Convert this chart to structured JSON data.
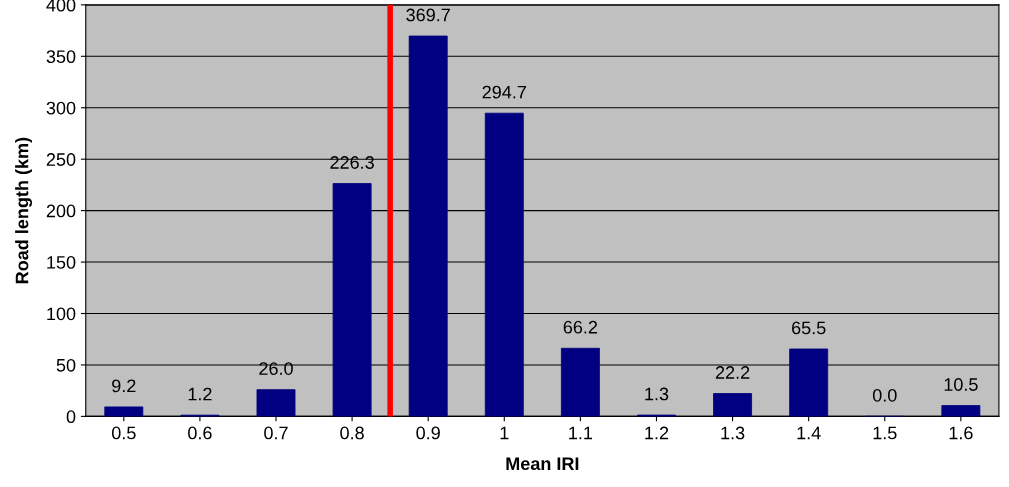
{
  "chart_data": {
    "type": "bar",
    "xlabel": "Mean IRI",
    "ylabel": "Road length (km)",
    "x": [
      0.5,
      0.6,
      0.7,
      0.8,
      0.9,
      1,
      1.1,
      1.2,
      1.3,
      1.4,
      1.5,
      1.6
    ],
    "values": [
      9.2,
      1.2,
      26.0,
      226.3,
      369.7,
      294.7,
      66.2,
      1.3,
      22.2,
      65.5,
      0.0,
      10.5
    ],
    "value_labels": [
      "9.2",
      "1.2",
      "26.0",
      "226.3",
      "369.7",
      "294.7",
      "66.2",
      "1.3",
      "22.2",
      "65.5",
      "0.0",
      "10.5"
    ],
    "color": "#000080",
    "xlim": [
      0.45,
      1.65
    ],
    "xticks": [
      0.5,
      0.6,
      0.7,
      0.8,
      0.9,
      1,
      1.1,
      1.2,
      1.3,
      1.4,
      1.5,
      1.6
    ],
    "ylim": [
      0,
      400
    ],
    "yticks": [
      0,
      50,
      100,
      150,
      200,
      250,
      300,
      350,
      400
    ],
    "grid": "y",
    "ref_lines": [
      {
        "axis": "x",
        "value": 0.85,
        "color": "#ff0000",
        "line_style": "solid"
      }
    ]
  }
}
